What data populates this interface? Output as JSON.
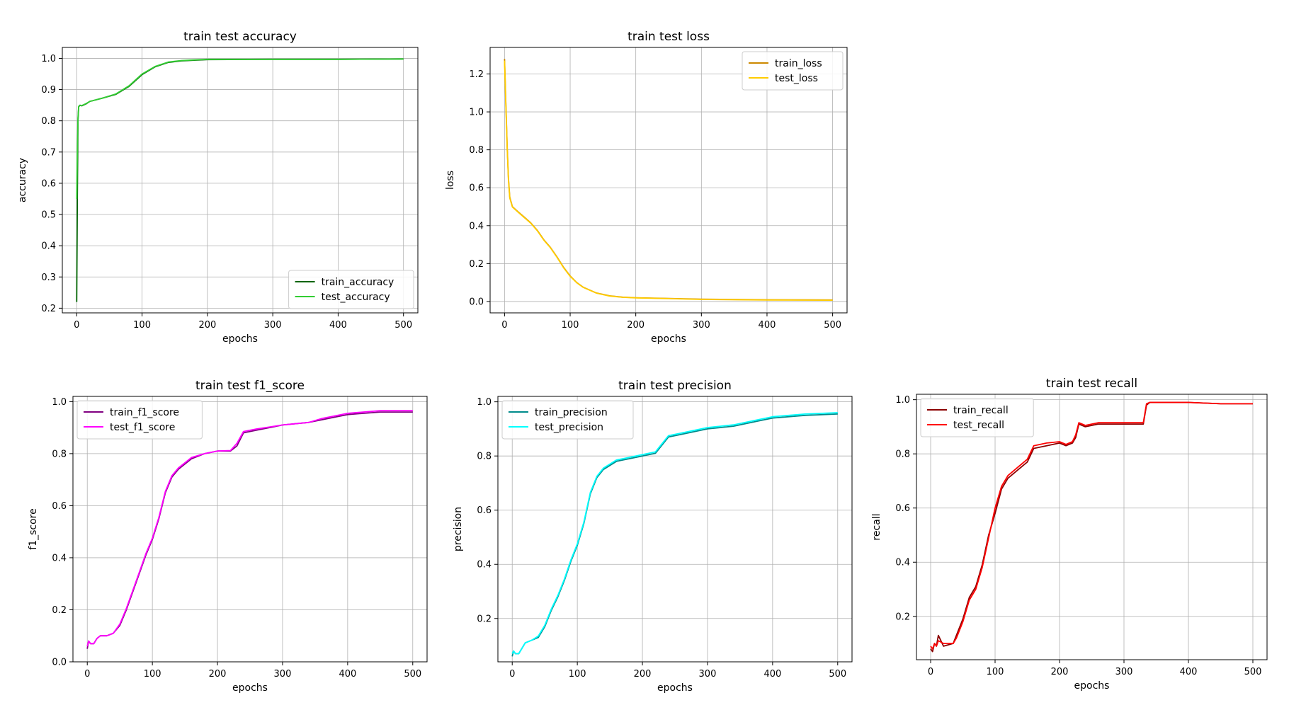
{
  "figure": {
    "background": "#ffffff",
    "grid_color": "#b0b0b0"
  },
  "chart_data": [
    {
      "id": "accuracy",
      "type": "line",
      "title": "train test accuracy",
      "xlabel": "epochs",
      "ylabel": "accuracy",
      "xlim": [
        -22,
        522
      ],
      "ylim": [
        0.185,
        1.035
      ],
      "xticks": [
        0,
        100,
        200,
        300,
        400,
        500
      ],
      "yticks": [
        0.2,
        0.3,
        0.4,
        0.5,
        0.6,
        0.7,
        0.8,
        0.9,
        1.0
      ],
      "ytick_labels": [
        "0.2",
        "0.3",
        "0.4",
        "0.5",
        "0.6",
        "0.7",
        "0.8",
        "0.9",
        "1.0"
      ],
      "grid": true,
      "legend_position": "bottom-right",
      "series": [
        {
          "name": "train_accuracy",
          "color": "#006400",
          "x": [
            0,
            1,
            2,
            3,
            5,
            8,
            15,
            20,
            40,
            60,
            80,
            100,
            120,
            140,
            160,
            200,
            300,
            400,
            500
          ],
          "y": [
            0.22,
            0.56,
            0.8,
            0.845,
            0.85,
            0.848,
            0.855,
            0.862,
            0.873,
            0.885,
            0.91,
            0.948,
            0.973,
            0.987,
            0.992,
            0.996,
            0.997,
            0.997,
            0.998
          ]
        },
        {
          "name": "test_accuracy",
          "color": "#32cd32",
          "x": [
            0,
            1,
            2,
            3,
            5,
            8,
            15,
            20,
            40,
            60,
            80,
            100,
            120,
            140,
            160,
            200,
            300,
            400,
            500
          ],
          "y": [
            0.55,
            0.7,
            0.81,
            0.846,
            0.849,
            0.849,
            0.856,
            0.862,
            0.873,
            0.886,
            0.912,
            0.95,
            0.974,
            0.988,
            0.993,
            0.997,
            0.997,
            0.997,
            0.998
          ]
        }
      ]
    },
    {
      "id": "loss",
      "type": "line",
      "title": "train test loss",
      "xlabel": "epochs",
      "ylabel": "loss",
      "xlim": [
        -22,
        522
      ],
      "ylim": [
        -0.06,
        1.34
      ],
      "xticks": [
        0,
        100,
        200,
        300,
        400,
        500
      ],
      "yticks": [
        0.0,
        0.2,
        0.4,
        0.6,
        0.8,
        1.0,
        1.2
      ],
      "ytick_labels": [
        "0.0",
        "0.2",
        "0.4",
        "0.6",
        "0.8",
        "1.0",
        "1.2"
      ],
      "grid": true,
      "legend_position": "top-right",
      "series": [
        {
          "name": "train_loss",
          "color": "#cc8800",
          "x": [
            0,
            2,
            4,
            6,
            8,
            12,
            20,
            30,
            40,
            50,
            60,
            70,
            80,
            90,
            100,
            110,
            120,
            140,
            160,
            180,
            200,
            250,
            300,
            400,
            500
          ],
          "y": [
            1.28,
            1.05,
            0.82,
            0.65,
            0.55,
            0.5,
            0.475,
            0.445,
            0.415,
            0.375,
            0.325,
            0.285,
            0.235,
            0.18,
            0.135,
            0.1,
            0.075,
            0.045,
            0.03,
            0.023,
            0.02,
            0.016,
            0.012,
            0.009,
            0.008
          ]
        },
        {
          "name": "test_loss",
          "color": "#ffcc00",
          "x": [
            0,
            2,
            4,
            6,
            8,
            12,
            20,
            30,
            40,
            50,
            60,
            70,
            80,
            90,
            100,
            110,
            120,
            140,
            160,
            180,
            200,
            250,
            300,
            400,
            500
          ],
          "y": [
            1.27,
            1.04,
            0.81,
            0.64,
            0.545,
            0.498,
            0.473,
            0.443,
            0.413,
            0.373,
            0.323,
            0.283,
            0.233,
            0.178,
            0.133,
            0.099,
            0.074,
            0.044,
            0.029,
            0.022,
            0.019,
            0.015,
            0.011,
            0.008,
            0.007
          ]
        }
      ]
    },
    {
      "id": "f1",
      "type": "line",
      "title": "train test f1_score",
      "xlabel": "epochs",
      "ylabel": "f1_score",
      "xlim": [
        -22,
        522
      ],
      "ylim": [
        0.0,
        1.02
      ],
      "xticks": [
        0,
        100,
        200,
        300,
        400,
        500
      ],
      "yticks": [
        0.0,
        0.2,
        0.4,
        0.6,
        0.8,
        1.0
      ],
      "ytick_labels": [
        "0.0",
        "0.2",
        "0.4",
        "0.6",
        "0.8",
        "1.0"
      ],
      "grid": true,
      "legend_position": "top-left",
      "series": [
        {
          "name": "train_f1_score",
          "color": "#800080",
          "x": [
            0,
            2,
            5,
            10,
            15,
            20,
            30,
            40,
            50,
            60,
            70,
            80,
            90,
            100,
            110,
            120,
            130,
            140,
            160,
            180,
            200,
            220,
            230,
            240,
            260,
            300,
            340,
            360,
            380,
            400,
            450,
            500
          ],
          "y": [
            0.05,
            0.08,
            0.07,
            0.07,
            0.09,
            0.1,
            0.1,
            0.11,
            0.14,
            0.2,
            0.27,
            0.34,
            0.41,
            0.47,
            0.55,
            0.65,
            0.71,
            0.74,
            0.78,
            0.8,
            0.81,
            0.81,
            0.83,
            0.88,
            0.89,
            0.91,
            0.92,
            0.93,
            0.94,
            0.95,
            0.96,
            0.96
          ]
        },
        {
          "name": "test_f1_score",
          "color": "#ff00ff",
          "x": [
            0,
            2,
            5,
            10,
            15,
            20,
            30,
            40,
            50,
            60,
            70,
            80,
            90,
            100,
            110,
            120,
            130,
            140,
            160,
            180,
            200,
            220,
            230,
            240,
            260,
            300,
            340,
            360,
            380,
            400,
            450,
            500
          ],
          "y": [
            0.06,
            0.08,
            0.07,
            0.07,
            0.09,
            0.1,
            0.1,
            0.11,
            0.145,
            0.205,
            0.275,
            0.345,
            0.415,
            0.475,
            0.555,
            0.655,
            0.715,
            0.745,
            0.785,
            0.8,
            0.81,
            0.812,
            0.84,
            0.885,
            0.895,
            0.91,
            0.92,
            0.935,
            0.945,
            0.955,
            0.965,
            0.965
          ]
        }
      ]
    },
    {
      "id": "precision",
      "type": "line",
      "title": "train test precision",
      "xlabel": "epochs",
      "ylabel": "precision",
      "xlim": [
        -22,
        522
      ],
      "ylim": [
        0.04,
        1.02
      ],
      "xticks": [
        0,
        100,
        200,
        300,
        400,
        500
      ],
      "yticks": [
        0.2,
        0.4,
        0.6,
        0.8,
        1.0
      ],
      "ytick_labels": [
        "0.2",
        "0.4",
        "0.6",
        "0.8",
        "1.0"
      ],
      "grid": true,
      "legend_position": "top-left",
      "series": [
        {
          "name": "train_precision",
          "color": "#008b8b",
          "x": [
            0,
            2,
            5,
            10,
            15,
            20,
            30,
            40,
            50,
            60,
            70,
            80,
            90,
            100,
            110,
            120,
            130,
            140,
            160,
            180,
            200,
            220,
            230,
            240,
            260,
            300,
            340,
            360,
            380,
            400,
            450,
            500
          ],
          "y": [
            0.06,
            0.08,
            0.07,
            0.07,
            0.09,
            0.11,
            0.12,
            0.13,
            0.17,
            0.23,
            0.28,
            0.34,
            0.41,
            0.47,
            0.55,
            0.66,
            0.72,
            0.75,
            0.78,
            0.79,
            0.8,
            0.81,
            0.84,
            0.87,
            0.88,
            0.9,
            0.91,
            0.92,
            0.93,
            0.94,
            0.95,
            0.955
          ]
        },
        {
          "name": "test_precision",
          "color": "#00ffff",
          "x": [
            0,
            2,
            5,
            10,
            15,
            20,
            30,
            40,
            50,
            60,
            70,
            80,
            90,
            100,
            110,
            120,
            130,
            140,
            160,
            180,
            200,
            220,
            230,
            240,
            260,
            300,
            340,
            360,
            380,
            400,
            450,
            500
          ],
          "y": [
            0.07,
            0.08,
            0.07,
            0.07,
            0.09,
            0.11,
            0.12,
            0.135,
            0.175,
            0.235,
            0.285,
            0.345,
            0.415,
            0.475,
            0.555,
            0.665,
            0.725,
            0.755,
            0.785,
            0.795,
            0.805,
            0.815,
            0.845,
            0.875,
            0.885,
            0.905,
            0.915,
            0.925,
            0.935,
            0.945,
            0.955,
            0.96
          ]
        }
      ]
    },
    {
      "id": "recall",
      "type": "line",
      "title": "train test recall",
      "xlabel": "epochs",
      "ylabel": "recall",
      "xlim": [
        -22,
        522
      ],
      "ylim": [
        0.04,
        1.02
      ],
      "xticks": [
        0,
        100,
        200,
        300,
        400,
        500
      ],
      "yticks": [
        0.2,
        0.4,
        0.6,
        0.8,
        1.0
      ],
      "ytick_labels": [
        "0.2",
        "0.4",
        "0.6",
        "0.8",
        "1.0"
      ],
      "grid": true,
      "legend_position": "top-left",
      "series": [
        {
          "name": "train_recall",
          "color": "#8b0000",
          "x": [
            0,
            3,
            6,
            9,
            12,
            20,
            35,
            40,
            50,
            60,
            70,
            80,
            90,
            100,
            110,
            120,
            140,
            150,
            160,
            180,
            200,
            210,
            220,
            225,
            230,
            240,
            260,
            300,
            330,
            335,
            340,
            400,
            450,
            500
          ],
          "y": [
            0.08,
            0.07,
            0.1,
            0.09,
            0.13,
            0.09,
            0.1,
            0.13,
            0.19,
            0.27,
            0.31,
            0.39,
            0.5,
            0.58,
            0.67,
            0.71,
            0.75,
            0.77,
            0.82,
            0.83,
            0.84,
            0.83,
            0.84,
            0.86,
            0.91,
            0.9,
            0.91,
            0.91,
            0.91,
            0.98,
            0.99,
            0.99,
            0.985,
            0.985
          ]
        },
        {
          "name": "test_recall",
          "color": "#ff0000",
          "x": [
            0,
            3,
            6,
            9,
            12,
            20,
            35,
            40,
            50,
            60,
            70,
            80,
            90,
            100,
            110,
            120,
            140,
            150,
            160,
            180,
            200,
            210,
            220,
            225,
            230,
            240,
            260,
            300,
            330,
            335,
            340,
            400,
            450,
            500
          ],
          "y": [
            0.09,
            0.08,
            0.1,
            0.09,
            0.11,
            0.1,
            0.1,
            0.12,
            0.18,
            0.26,
            0.3,
            0.38,
            0.49,
            0.6,
            0.68,
            0.72,
            0.76,
            0.78,
            0.83,
            0.84,
            0.845,
            0.835,
            0.845,
            0.87,
            0.915,
            0.905,
            0.915,
            0.915,
            0.915,
            0.985,
            0.99,
            0.99,
            0.985,
            0.985
          ]
        }
      ]
    }
  ]
}
